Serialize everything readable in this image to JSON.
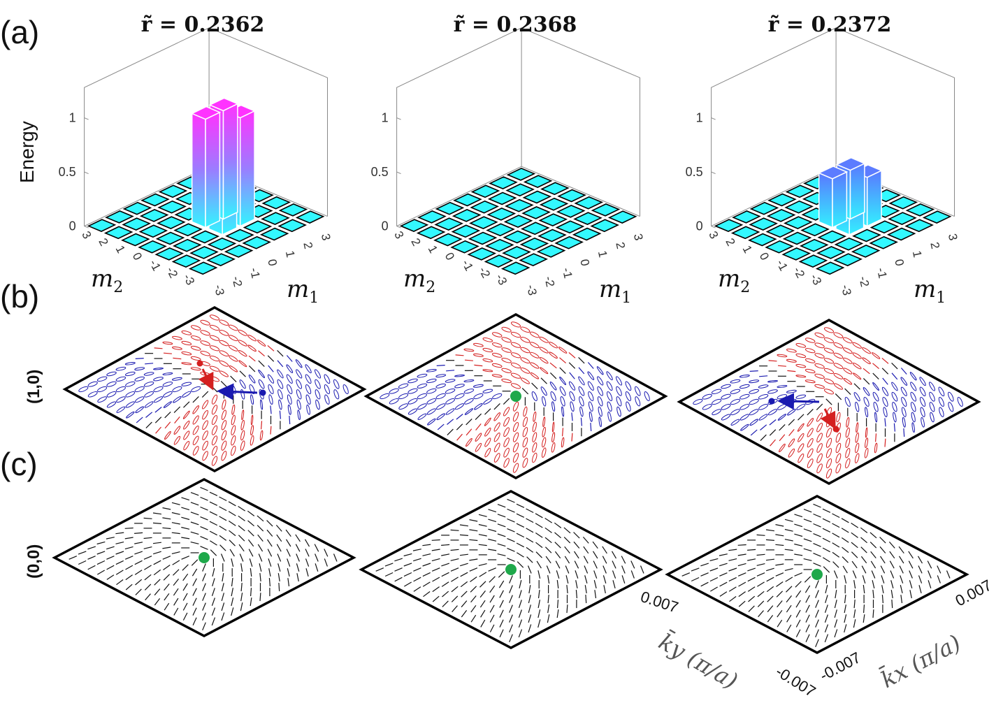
{
  "panel_letters": {
    "a": "(a)",
    "b": "(b)",
    "c": "(c)"
  },
  "row_labels": {
    "b": "(1,0)",
    "c": "(0,0)"
  },
  "z_axis_label": "Energy",
  "m1_label": "m",
  "m1_sub": "1",
  "m2_label": "m",
  "m2_sub": "2",
  "k_axes": {
    "ky_label": "k̄y (π/a)",
    "kx_label": "k̄x (π/a)",
    "ky_max": "0.007",
    "ky_min": "-0.007",
    "kx_min": "-0.007",
    "kx_max": "0.007"
  },
  "colors": {
    "bar_top": "#ff33ff",
    "bar_bottom": "#33f5ff",
    "bar_blue": "#5c7cff",
    "floor_tile": "#33f8ff",
    "red": "#d42020",
    "blue": "#1a1ab0",
    "black": "#111111",
    "green": "#1ea84a"
  },
  "chart_data": [
    {
      "type": "bar3d",
      "title": "r̃ = 0.2362",
      "m1_ticks": [
        "-3",
        "-2",
        "-1",
        "0",
        "1",
        "2",
        "3"
      ],
      "m2_ticks": [
        "3",
        "2",
        "1",
        "0",
        "-1",
        "-2",
        "-3"
      ],
      "z_ticks": [
        "0",
        "0.5",
        "1"
      ],
      "zlim": [
        0,
        1
      ],
      "bars": [
        {
          "m1": 0,
          "m2": 0,
          "energy": 1.0
        },
        {
          "m1": 0,
          "m2": -1,
          "energy": 1.0
        },
        {
          "m1": 1,
          "m2": 0,
          "energy": 1.0
        },
        {
          "m1": 1,
          "m2": -1,
          "energy": 1.0
        }
      ],
      "other_energy": 0
    },
    {
      "type": "bar3d",
      "title": "r̃ = 0.2368",
      "m1_ticks": [
        "-3",
        "-2",
        "-1",
        "0",
        "1",
        "2",
        "3"
      ],
      "m2_ticks": [
        "3",
        "2",
        "1",
        "0",
        "-1",
        "-2",
        "-3"
      ],
      "z_ticks": [
        "0",
        "0.5",
        "1"
      ],
      "zlim": [
        0,
        1
      ],
      "bars": [],
      "other_energy": 0
    },
    {
      "type": "bar3d",
      "title": "r̃ = 0.2372",
      "m1_ticks": [
        "-3",
        "-2",
        "-1",
        "0",
        "1",
        "2",
        "3"
      ],
      "m2_ticks": [
        "3",
        "2",
        "1",
        "0",
        "-1",
        "-2",
        "-3"
      ],
      "z_ticks": [
        "0",
        "0.5",
        "1"
      ],
      "zlim": [
        0,
        1
      ],
      "bars": [
        {
          "m1": 0,
          "m2": 0,
          "energy": 0.45
        },
        {
          "m1": 0,
          "m2": -1,
          "energy": 0.45
        },
        {
          "m1": 1,
          "m2": 0,
          "energy": 0.45
        },
        {
          "m1": 1,
          "m2": -1,
          "energy": 0.45
        }
      ],
      "other_energy": 0
    }
  ]
}
